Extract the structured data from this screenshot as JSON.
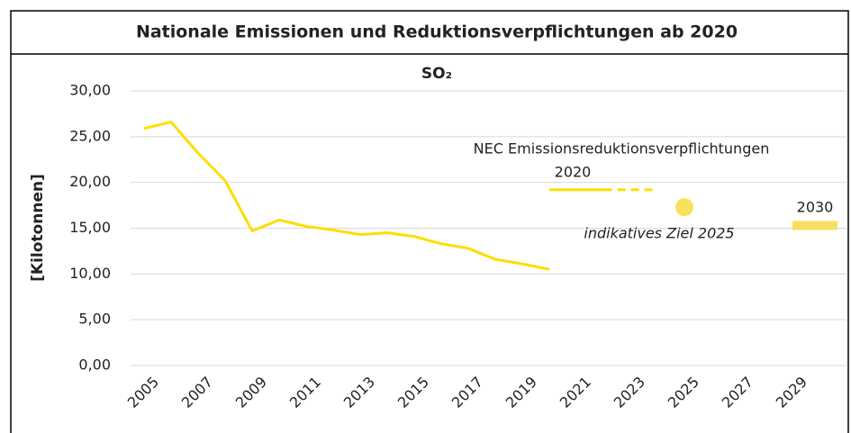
{
  "chart_data": {
    "type": "line",
    "title": "Nationale Emissionen und Reduktionsverpflichtungen ab 2020",
    "subtitle": "SO₂",
    "y_label": "[Kilotonnen]",
    "xlim": [
      2004.5,
      2030.5
    ],
    "xticks": [
      2005,
      2007,
      2009,
      2011,
      2013,
      2015,
      2017,
      2019,
      2021,
      2023,
      2025,
      2027,
      2029
    ],
    "ylim": [
      0,
      30
    ],
    "yticks": [
      {
        "value": 0,
        "label": "0,00"
      },
      {
        "value": 5,
        "label": "5,00"
      },
      {
        "value": 10,
        "label": "10,00"
      },
      {
        "value": 15,
        "label": "15,00"
      },
      {
        "value": 20,
        "label": "20,00"
      },
      {
        "value": 25,
        "label": "25,00"
      },
      {
        "value": 30,
        "label": "30,00"
      }
    ],
    "grid": true,
    "series": [
      {
        "color": "#ffdd00",
        "x": [
          2005,
          2006,
          2007,
          2008,
          2009,
          2010,
          2011,
          2012,
          2013,
          2014,
          2015,
          2016,
          2017,
          2018,
          2019,
          2020
        ],
        "values": [
          25.9,
          26.6,
          23.2,
          20.2,
          14.7,
          15.9,
          15.2,
          14.8,
          14.3,
          14.5,
          14.1,
          13.3,
          12.8,
          11.6,
          11.1,
          10.5
        ]
      }
    ],
    "targets": {
      "nec_2020": {
        "label": [
          "NEC Emissionsreduktionsverpflichtungen",
          "2020"
        ],
        "x": [
          2020,
          2024
        ],
        "value": 19.2,
        "color": "#ffdd00"
      },
      "indicative_2025": {
        "label": "indikatives Ziel 2025",
        "x": 2025,
        "value": 17.3,
        "color": "#f9e05a"
      },
      "target_2030": {
        "label": "2030",
        "x": 2030,
        "value": 15.3,
        "color": "#f7df63"
      }
    }
  }
}
